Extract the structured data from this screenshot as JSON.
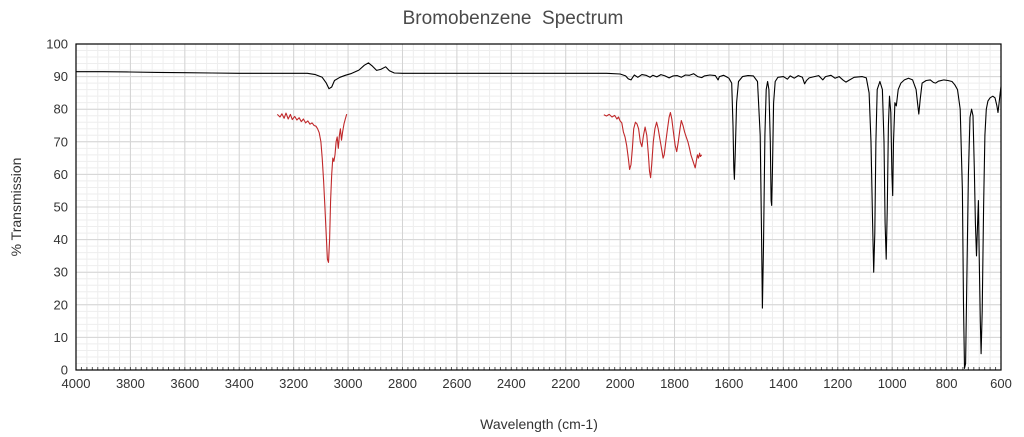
{
  "chart_data": {
    "type": "line",
    "title": "Bromobenzene  Spectrum",
    "xlabel": "Wavelength (cm-1)",
    "ylabel": "% Transmission",
    "xlim": [
      4000,
      600
    ],
    "ylim": [
      0,
      100
    ],
    "x_reversed": true,
    "x_ticks": [
      4000,
      3800,
      3600,
      3400,
      3200,
      3000,
      2800,
      2600,
      2400,
      2200,
      2000,
      1800,
      1600,
      1400,
      1200,
      1000,
      800,
      600
    ],
    "y_ticks": [
      0,
      10,
      20,
      30,
      40,
      50,
      60,
      70,
      80,
      90,
      100
    ],
    "grid": true,
    "legend": "none",
    "series": [
      {
        "color": "#000000",
        "points": [
          [
            4000,
            91.5
          ],
          [
            3900,
            91.5
          ],
          [
            3800,
            91.4
          ],
          [
            3700,
            91.3
          ],
          [
            3600,
            91.2
          ],
          [
            3500,
            91.1
          ],
          [
            3400,
            91.0
          ],
          [
            3300,
            91.0
          ],
          [
            3200,
            91.0
          ],
          [
            3150,
            91.0
          ],
          [
            3120,
            90.6
          ],
          [
            3095,
            89.8
          ],
          [
            3080,
            88.0
          ],
          [
            3070,
            86.3
          ],
          [
            3060,
            86.8
          ],
          [
            3050,
            88.8
          ],
          [
            3030,
            89.8
          ],
          [
            3010,
            90.4
          ],
          [
            2990,
            90.9
          ],
          [
            2960,
            92.0
          ],
          [
            2940,
            93.5
          ],
          [
            2925,
            94.2
          ],
          [
            2910,
            93.2
          ],
          [
            2895,
            91.9
          ],
          [
            2880,
            92.2
          ],
          [
            2862,
            93.0
          ],
          [
            2848,
            91.8
          ],
          [
            2830,
            91.1
          ],
          [
            2800,
            91.0
          ],
          [
            2600,
            91.0
          ],
          [
            2400,
            91.0
          ],
          [
            2200,
            91.0
          ],
          [
            2050,
            91.0
          ],
          [
            2000,
            90.8
          ],
          [
            1980,
            90.2
          ],
          [
            1970,
            89.3
          ],
          [
            1960,
            89.0
          ],
          [
            1948,
            90.5
          ],
          [
            1935,
            89.8
          ],
          [
            1920,
            90.6
          ],
          [
            1905,
            90.4
          ],
          [
            1890,
            89.8
          ],
          [
            1880,
            90.4
          ],
          [
            1865,
            89.9
          ],
          [
            1850,
            90.6
          ],
          [
            1835,
            90.2
          ],
          [
            1820,
            89.6
          ],
          [
            1805,
            90.2
          ],
          [
            1790,
            90.3
          ],
          [
            1775,
            89.8
          ],
          [
            1760,
            90.5
          ],
          [
            1745,
            90.4
          ],
          [
            1730,
            90.9
          ],
          [
            1715,
            90.0
          ],
          [
            1700,
            89.7
          ],
          [
            1690,
            90.2
          ],
          [
            1670,
            90.5
          ],
          [
            1650,
            90.3
          ],
          [
            1640,
            89.0
          ],
          [
            1635,
            90.0
          ],
          [
            1620,
            90.4
          ],
          [
            1610,
            90.0
          ],
          [
            1600,
            89.5
          ],
          [
            1590,
            88.0
          ],
          [
            1585,
            75.0
          ],
          [
            1582,
            62.0
          ],
          [
            1580,
            58.5
          ],
          [
            1577,
            66.0
          ],
          [
            1572,
            82.0
          ],
          [
            1565,
            88.5
          ],
          [
            1550,
            90.0
          ],
          [
            1530,
            90.3
          ],
          [
            1510,
            90.2
          ],
          [
            1495,
            88.5
          ],
          [
            1485,
            72.0
          ],
          [
            1480,
            40.0
          ],
          [
            1477,
            19.0
          ],
          [
            1473,
            38.0
          ],
          [
            1468,
            72.0
          ],
          [
            1463,
            86.0
          ],
          [
            1458,
            88.5
          ],
          [
            1453,
            86.0
          ],
          [
            1448,
            70.0
          ],
          [
            1445,
            52.0
          ],
          [
            1443,
            50.5
          ],
          [
            1440,
            62.0
          ],
          [
            1436,
            82.0
          ],
          [
            1430,
            88.5
          ],
          [
            1420,
            89.8
          ],
          [
            1400,
            90.0
          ],
          [
            1385,
            89.2
          ],
          [
            1375,
            90.2
          ],
          [
            1360,
            89.5
          ],
          [
            1345,
            90.3
          ],
          [
            1330,
            89.8
          ],
          [
            1322,
            87.8
          ],
          [
            1315,
            88.8
          ],
          [
            1305,
            89.6
          ],
          [
            1290,
            89.9
          ],
          [
            1270,
            90.3
          ],
          [
            1255,
            89.0
          ],
          [
            1245,
            90.0
          ],
          [
            1225,
            90.4
          ],
          [
            1210,
            89.5
          ],
          [
            1195,
            90.0
          ],
          [
            1180,
            88.9
          ],
          [
            1170,
            88.3
          ],
          [
            1160,
            88.8
          ],
          [
            1140,
            89.8
          ],
          [
            1110,
            90.0
          ],
          [
            1095,
            89.6
          ],
          [
            1085,
            85.0
          ],
          [
            1078,
            70.0
          ],
          [
            1072,
            45.0
          ],
          [
            1068,
            30.0
          ],
          [
            1064,
            42.0
          ],
          [
            1060,
            70.0
          ],
          [
            1055,
            86.0
          ],
          [
            1045,
            88.5
          ],
          [
            1036,
            86.0
          ],
          [
            1030,
            70.0
          ],
          [
            1026,
            45.0
          ],
          [
            1022,
            34.0
          ],
          [
            1018,
            50.0
          ],
          [
            1014,
            75.0
          ],
          [
            1010,
            84.0
          ],
          [
            1005,
            79.0
          ],
          [
            1001,
            60.0
          ],
          [
            998,
            53.5
          ],
          [
            995,
            70.0
          ],
          [
            990,
            82.0
          ],
          [
            985,
            81.0
          ],
          [
            978,
            86.0
          ],
          [
            968,
            88.0
          ],
          [
            955,
            89.0
          ],
          [
            940,
            89.5
          ],
          [
            925,
            89.0
          ],
          [
            912,
            86.0
          ],
          [
            907,
            82.0
          ],
          [
            902,
            78.5
          ],
          [
            897,
            83.0
          ],
          [
            890,
            88.0
          ],
          [
            875,
            88.8
          ],
          [
            860,
            89.0
          ],
          [
            848,
            88.2
          ],
          [
            840,
            88.0
          ],
          [
            830,
            88.6
          ],
          [
            810,
            89.0
          ],
          [
            795,
            88.8
          ],
          [
            780,
            88.5
          ],
          [
            770,
            87.5
          ],
          [
            760,
            86.0
          ],
          [
            750,
            80.0
          ],
          [
            742,
            55.0
          ],
          [
            738,
            20.0
          ],
          [
            734,
            0.5
          ],
          [
            730,
            2.0
          ],
          [
            726,
            25.0
          ],
          [
            720,
            60.0
          ],
          [
            714,
            77.5
          ],
          [
            708,
            80.0
          ],
          [
            703,
            78.0
          ],
          [
            698,
            62.0
          ],
          [
            694,
            45.0
          ],
          [
            690,
            35.0
          ],
          [
            686,
            45.0
          ],
          [
            683,
            52.0
          ],
          [
            680,
            35.0
          ],
          [
            676,
            15.0
          ],
          [
            673,
            5.0
          ],
          [
            669,
            18.0
          ],
          [
            664,
            50.0
          ],
          [
            659,
            72.0
          ],
          [
            654,
            80.0
          ],
          [
            648,
            82.5
          ],
          [
            640,
            83.5
          ],
          [
            630,
            84.0
          ],
          [
            622,
            83.5
          ],
          [
            615,
            81.0
          ],
          [
            611,
            79.0
          ],
          [
            607,
            82.0
          ],
          [
            603,
            85.0
          ],
          [
            600,
            87.0
          ]
        ]
      },
      {
        "color": "#c0282a",
        "points": [
          [
            3260,
            78.4
          ],
          [
            3250,
            77.6
          ],
          [
            3243,
            78.6
          ],
          [
            3235,
            77.2
          ],
          [
            3228,
            78.8
          ],
          [
            3220,
            77.0
          ],
          [
            3212,
            78.4
          ],
          [
            3205,
            76.8
          ],
          [
            3196,
            77.8
          ],
          [
            3188,
            76.7
          ],
          [
            3180,
            77.4
          ],
          [
            3172,
            76.2
          ],
          [
            3164,
            77.0
          ],
          [
            3156,
            75.8
          ],
          [
            3148,
            76.4
          ],
          [
            3140,
            75.4
          ],
          [
            3132,
            75.8
          ],
          [
            3125,
            75.0
          ],
          [
            3118,
            74.8
          ],
          [
            3112,
            74.0
          ],
          [
            3106,
            72.8
          ],
          [
            3100,
            70.0
          ],
          [
            3095,
            65.0
          ],
          [
            3090,
            58.0
          ],
          [
            3085,
            50.0
          ],
          [
            3080,
            41.0
          ],
          [
            3076,
            34.0
          ],
          [
            3072,
            33.0
          ],
          [
            3068,
            40.0
          ],
          [
            3064,
            52.0
          ],
          [
            3060,
            60.0
          ],
          [
            3056,
            65.0
          ],
          [
            3052,
            64.0
          ],
          [
            3048,
            66.0
          ],
          [
            3044,
            70.0
          ],
          [
            3040,
            71.5
          ],
          [
            3036,
            68.0
          ],
          [
            3032,
            72.0
          ],
          [
            3028,
            74.0
          ],
          [
            3024,
            70.5
          ],
          [
            3020,
            73.0
          ],
          [
            3015,
            75.5
          ],
          [
            3010,
            77.0
          ],
          [
            3005,
            78.5
          ],
          [
            2060,
            78.3
          ],
          [
            2050,
            77.9
          ],
          [
            2040,
            78.4
          ],
          [
            2030,
            77.6
          ],
          [
            2020,
            78.1
          ],
          [
            2012,
            77.0
          ],
          [
            2006,
            77.6
          ],
          [
            2000,
            76.4
          ],
          [
            1994,
            75.8
          ],
          [
            1988,
            73.0
          ],
          [
            1982,
            71.5
          ],
          [
            1976,
            69.0
          ],
          [
            1970,
            65.0
          ],
          [
            1965,
            61.5
          ],
          [
            1960,
            63.0
          ],
          [
            1955,
            68.0
          ],
          [
            1950,
            74.0
          ],
          [
            1944,
            76.0
          ],
          [
            1938,
            75.5
          ],
          [
            1932,
            74.0
          ],
          [
            1926,
            70.0
          ],
          [
            1920,
            68.5
          ],
          [
            1914,
            72.0
          ],
          [
            1908,
            74.5
          ],
          [
            1902,
            72.0
          ],
          [
            1896,
            66.0
          ],
          [
            1892,
            61.0
          ],
          [
            1888,
            59.0
          ],
          [
            1884,
            63.0
          ],
          [
            1878,
            70.0
          ],
          [
            1872,
            74.0
          ],
          [
            1866,
            76.0
          ],
          [
            1860,
            74.0
          ],
          [
            1854,
            71.0
          ],
          [
            1848,
            68.0
          ],
          [
            1842,
            65.0
          ],
          [
            1838,
            66.0
          ],
          [
            1832,
            70.0
          ],
          [
            1826,
            74.0
          ],
          [
            1820,
            77.5
          ],
          [
            1815,
            79.0
          ],
          [
            1810,
            77.0
          ],
          [
            1804,
            73.0
          ],
          [
            1798,
            69.0
          ],
          [
            1792,
            67.0
          ],
          [
            1786,
            70.0
          ],
          [
            1780,
            74.0
          ],
          [
            1775,
            76.5
          ],
          [
            1769,
            75.0
          ],
          [
            1763,
            73.0
          ],
          [
            1757,
            71.5
          ],
          [
            1751,
            70.0
          ],
          [
            1745,
            68.0
          ],
          [
            1740,
            66.0
          ],
          [
            1734,
            64.5
          ],
          [
            1728,
            63.0
          ],
          [
            1724,
            62.0
          ],
          [
            1720,
            64.0
          ],
          [
            1716,
            66.0
          ],
          [
            1712,
            65.0
          ],
          [
            1708,
            66.5
          ],
          [
            1705,
            65.5
          ],
          [
            1700,
            66.0
          ]
        ]
      }
    ]
  }
}
